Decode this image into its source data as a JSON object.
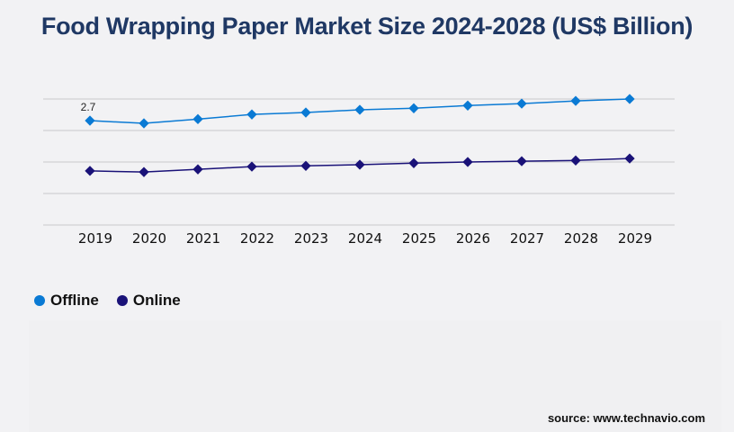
{
  "title": "Food Wrapping Paper Market Size 2024-2028 (US$ Billion)",
  "source": "source: www.technavio.com",
  "chart_data": {
    "type": "line",
    "title": "Food Wrapping Paper Market Size 2024-2028 (US$ Billion)",
    "categories": [
      "2019",
      "2020",
      "2021",
      "2022",
      "2023",
      "2024",
      "2025",
      "2026",
      "2027",
      "2028",
      "2029"
    ],
    "ylim": [
      0,
      3.26
    ],
    "grid": true,
    "legend_position": "bottom-left",
    "series": [
      {
        "name": "Offline",
        "color": "#0a7ad4",
        "values": [
          2.7,
          2.63,
          2.74,
          2.86,
          2.91,
          2.98,
          3.02,
          3.09,
          3.14,
          3.21,
          3.26
        ]
      },
      {
        "name": "Online",
        "color": "#1a1278",
        "values": [
          1.4,
          1.37,
          1.44,
          1.51,
          1.53,
          1.56,
          1.6,
          1.63,
          1.65,
          1.67,
          1.72
        ]
      }
    ],
    "annotations": [
      {
        "series": "Offline",
        "category": "2019",
        "text": "2.7"
      }
    ]
  }
}
